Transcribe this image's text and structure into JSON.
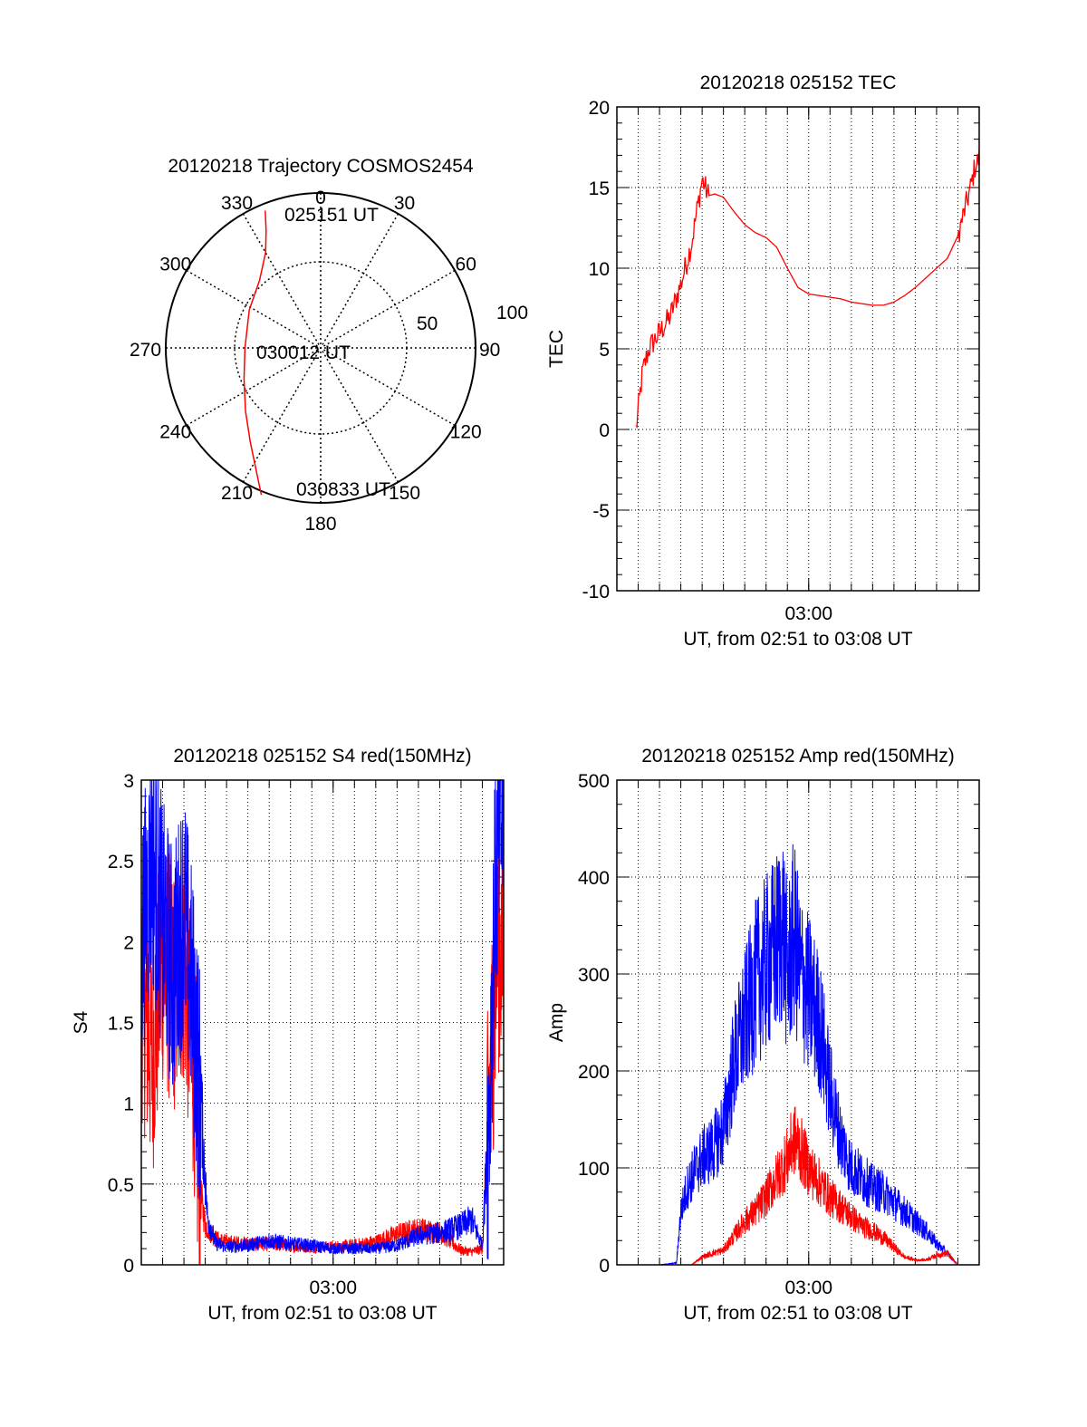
{
  "chart_data": [
    {
      "type": "polar",
      "title": "20120218 Trajectory COSMOS2454",
      "angle_labels": [
        "0",
        "30",
        "60",
        "90",
        "120",
        "150",
        "180",
        "210",
        "240",
        "270",
        "300",
        "330"
      ],
      "radial_labels": [
        "50",
        "100"
      ],
      "grid": true,
      "track_color": "#ff0000",
      "track": {
        "azimuth_deg": [
          338,
          335,
          330,
          318,
          298,
          270,
          248,
          230,
          217,
          208,
          202
        ],
        "radius": [
          86,
          75,
          64,
          53,
          47,
          44,
          48,
          57,
          68,
          80,
          92
        ]
      },
      "annotations": [
        {
          "text": "025151 UT",
          "azimuth_deg": 8,
          "radius": 80
        },
        {
          "text": "030012 UT",
          "azimuth_deg": 270,
          "radius": 2
        },
        {
          "text": "030833 UT",
          "azimuth_deg": 180,
          "radius": 92
        }
      ]
    },
    {
      "type": "line",
      "title": "20120218 025152 TEC",
      "xlabel": "UT, from 02:51 to 03:08 UT",
      "ylabel": "TEC",
      "x_tick_labels": [
        "03:00"
      ],
      "ylim": [
        -10,
        20
      ],
      "y_ticks": [
        "-10",
        "-5",
        "0",
        "5",
        "10",
        "15",
        "20"
      ],
      "grid": true,
      "series": [
        {
          "color": "#ff0000",
          "x_min": [
            0.9,
            1.2,
            1.5,
            2.0,
            2.5,
            3.0,
            3.5,
            4.0,
            4.3,
            4.6,
            5.0,
            5.5,
            6.0,
            6.5,
            7.0,
            7.5,
            8.0,
            8.5,
            9.0,
            9.5,
            10.0,
            10.5,
            11.0,
            11.5,
            12.0,
            12.5,
            13.0,
            13.5,
            14.0,
            14.5,
            15.0,
            15.5,
            16.0,
            16.3,
            16.6,
            16.8,
            17.0
          ],
          "values": [
            0.0,
            3.5,
            5.0,
            6.0,
            7.0,
            9.0,
            11.5,
            15.5,
            14.5,
            14.6,
            14.4,
            13.5,
            12.7,
            12.2,
            11.9,
            11.3,
            10.0,
            8.8,
            8.4,
            8.3,
            8.2,
            8.1,
            7.9,
            7.8,
            7.7,
            7.7,
            7.9,
            8.3,
            8.8,
            9.4,
            10.0,
            10.6,
            12.0,
            13.5,
            15.0,
            16.3,
            16.8
          ]
        }
      ]
    },
    {
      "type": "line",
      "title": "20120218 025152 S4 red(150MHz)",
      "xlabel": "UT, from 02:51 to 03:08 UT",
      "ylabel": "S4",
      "x_tick_labels": [
        "03:00"
      ],
      "ylim": [
        0,
        3
      ],
      "y_ticks": [
        "0",
        "0.5",
        "1",
        "1.5",
        "2",
        "2.5",
        "3"
      ],
      "grid": true,
      "series": [
        {
          "color": "#ff0000",
          "x_min": [
            0.0,
            0.5,
            1.0,
            1.5,
            2.0,
            2.5,
            2.7,
            3.0,
            3.5,
            4.0,
            5.0,
            6.0,
            7.0,
            8.0,
            9.0,
            10.0,
            11.0,
            12.0,
            13.0,
            14.0,
            15.0,
            15.5,
            16.0,
            16.4,
            16.7,
            17.0
          ],
          "values": [
            1.7,
            1.3,
            1.9,
            1.7,
            1.9,
            1.2,
            0.5,
            0.25,
            0.16,
            0.14,
            0.13,
            0.13,
            0.12,
            0.11,
            0.11,
            0.12,
            0.14,
            0.19,
            0.22,
            0.2,
            0.09,
            0.08,
            0.1,
            1.2,
            2.0,
            1.9
          ]
        },
        {
          "color": "#0000ff",
          "x_min": [
            0.0,
            0.5,
            1.0,
            1.5,
            2.0,
            2.5,
            2.8,
            3.1,
            3.5,
            4.0,
            5.0,
            6.0,
            7.0,
            8.0,
            9.0,
            10.0,
            11.0,
            12.0,
            13.0,
            14.0,
            15.0,
            15.5,
            16.0,
            16.3,
            16.6,
            17.0
          ],
          "values": [
            2.0,
            2.5,
            2.1,
            1.8,
            2.2,
            1.5,
            1.0,
            0.3,
            0.13,
            0.11,
            0.12,
            0.15,
            0.13,
            0.12,
            0.1,
            0.1,
            0.1,
            0.12,
            0.18,
            0.2,
            0.24,
            0.28,
            0.12,
            0.9,
            2.3,
            2.9
          ]
        }
      ]
    },
    {
      "type": "line",
      "title": "20120218 025152 Amp red(150MHz)",
      "xlabel": "UT, from 02:51 to 03:08 UT",
      "ylabel": "Amp",
      "x_tick_labels": [
        "03:00"
      ],
      "ylim": [
        0,
        500
      ],
      "y_ticks": [
        "0",
        "100",
        "200",
        "300",
        "400",
        "500"
      ],
      "grid": true,
      "series": [
        {
          "color": "#0000ff",
          "x_min": [
            0.0,
            1.0,
            2.0,
            2.8,
            3.0,
            3.3,
            3.6,
            4.0,
            4.5,
            5.0,
            5.5,
            6.0,
            6.5,
            7.0,
            7.5,
            7.8,
            8.0,
            8.3,
            8.6,
            9.0,
            9.5,
            10.0,
            10.5,
            11.0,
            11.5,
            12.0,
            12.5,
            13.0,
            13.5,
            14.0,
            14.5,
            15.0,
            15.5,
            16.0,
            17.0
          ],
          "values": [
            0,
            0,
            0,
            2,
            55,
            80,
            95,
            110,
            120,
            140,
            210,
            250,
            290,
            310,
            330,
            350,
            300,
            340,
            300,
            280,
            250,
            180,
            130,
            100,
            90,
            80,
            75,
            65,
            55,
            45,
            35,
            22,
            12,
            0,
            0
          ]
        },
        {
          "color": "#ff0000",
          "x_min": [
            0.0,
            2.0,
            3.5,
            4.0,
            4.5,
            5.0,
            5.5,
            6.0,
            6.5,
            7.0,
            7.5,
            8.0,
            8.3,
            8.6,
            9.0,
            9.5,
            10.0,
            10.5,
            11.0,
            11.5,
            12.0,
            12.5,
            13.0,
            13.5,
            14.0,
            14.5,
            15.0,
            15.5,
            16.0,
            17.0
          ],
          "values": [
            0,
            0,
            0,
            8,
            12,
            15,
            30,
            45,
            55,
            70,
            90,
            110,
            130,
            120,
            100,
            85,
            70,
            60,
            50,
            40,
            35,
            28,
            18,
            8,
            5,
            5,
            10,
            12,
            0,
            0
          ]
        }
      ]
    }
  ]
}
